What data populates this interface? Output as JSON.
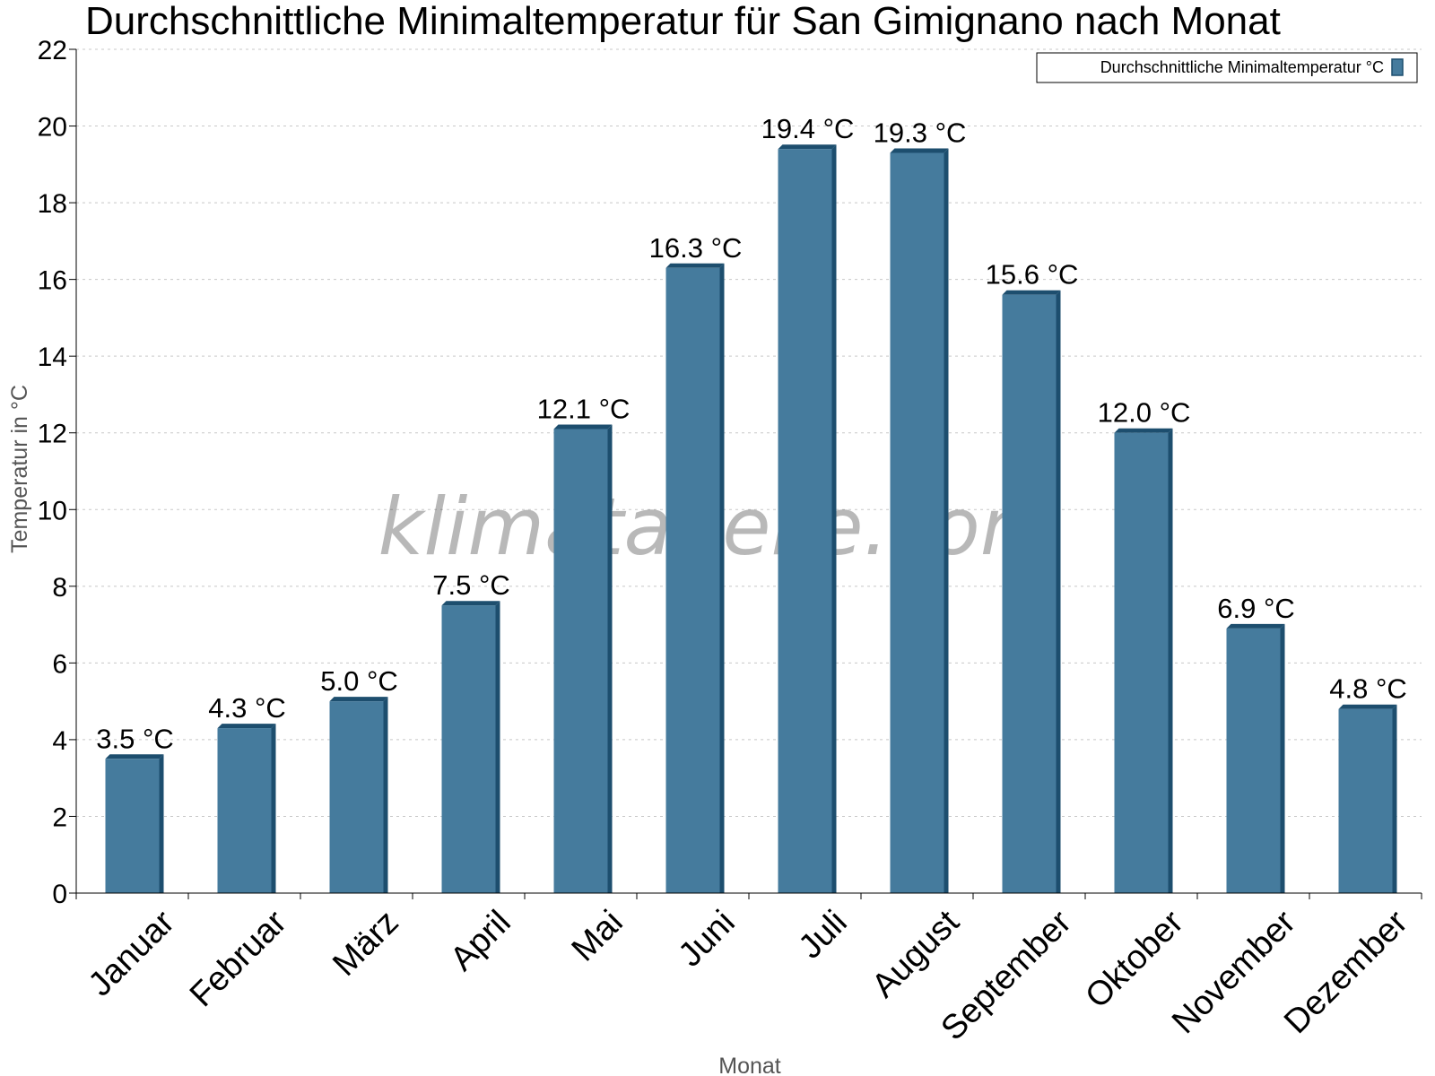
{
  "chart_data": {
    "type": "bar",
    "title": "Durchschnittliche Minimaltemperatur für San Gimignano nach Monat",
    "xlabel": "Monat",
    "ylabel": "Temperatur in °C",
    "ylim": [
      0,
      22
    ],
    "yticks": [
      0,
      2,
      4,
      6,
      8,
      10,
      12,
      14,
      16,
      18,
      20,
      22
    ],
    "grid": true,
    "legend_position": "top-right",
    "categories": [
      "Januar",
      "Februar",
      "März",
      "April",
      "Mai",
      "Juni",
      "Juli",
      "August",
      "September",
      "Oktober",
      "November",
      "Dezember"
    ],
    "series": [
      {
        "name": "Durchschnittliche Minimaltemperatur °C",
        "values": [
          3.5,
          4.3,
          5.0,
          7.5,
          12.1,
          16.3,
          19.4,
          19.3,
          15.6,
          12.0,
          6.9,
          4.8
        ],
        "labels": [
          "3.5 °C",
          "4.3 °C",
          "5.0 °C",
          "7.5 °C",
          "12.1 °C",
          "16.3 °C",
          "19.4 °C",
          "19.3 °C",
          "15.6 °C",
          "12.0 °C",
          "6.9 °C",
          "4.8 °C"
        ],
        "color": "#457b9d",
        "shade_color": "#1d4e6e"
      }
    ],
    "watermark": "klimatabelle.com"
  }
}
